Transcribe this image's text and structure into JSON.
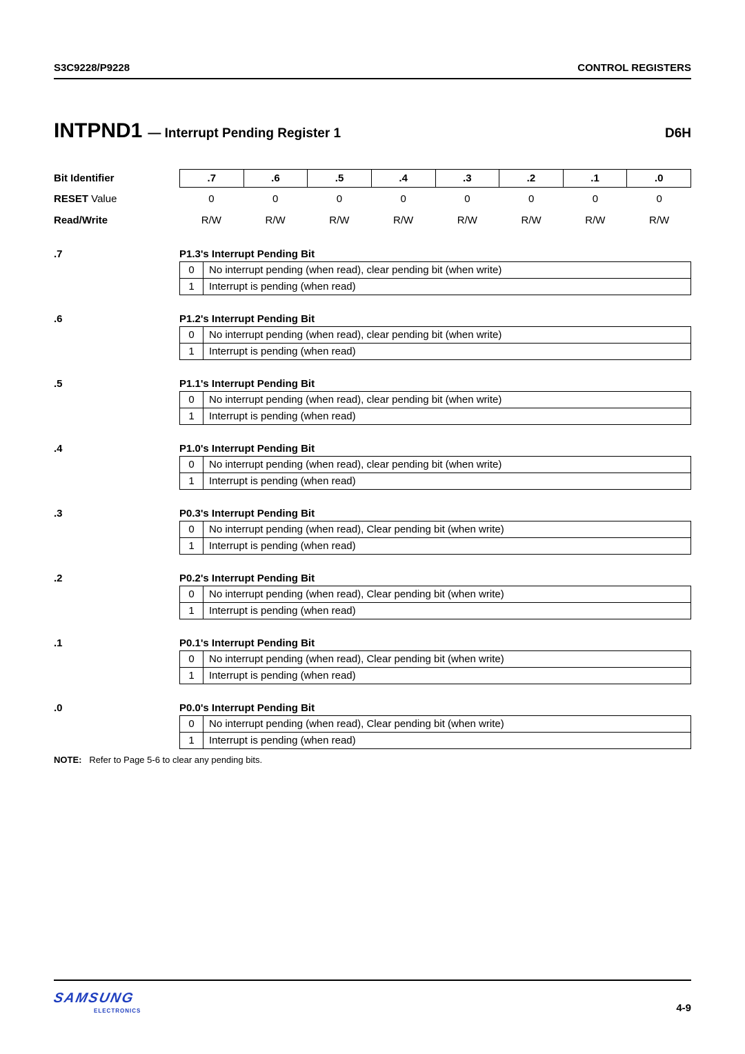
{
  "header": {
    "left": "S3C9228/P9228",
    "right": "CONTROL REGISTERS"
  },
  "title": {
    "name": "INTPND1",
    "desc": "— Interrupt Pending Register 1",
    "addr": "D6H"
  },
  "bitrow": {
    "label": "Bit Identifier",
    "cells": [
      ".7",
      ".6",
      ".5",
      ".4",
      ".3",
      ".2",
      ".1",
      ".0"
    ]
  },
  "resetrow": {
    "label_bold": "RESET",
    "label_rest": " Value",
    "cells": [
      "0",
      "0",
      "0",
      "0",
      "0",
      "0",
      "0",
      "0"
    ]
  },
  "rwrow": {
    "label": "Read/Write",
    "cells": [
      "R/W",
      "R/W",
      "R/W",
      "R/W",
      "R/W",
      "R/W",
      "R/W",
      "R/W"
    ]
  },
  "sections": [
    {
      "bit": ".7",
      "title": "P1.3's Interrupt Pending Bit",
      "rows": [
        {
          "k": "0",
          "t": "No interrupt pending (when read), clear pending bit (when write)"
        },
        {
          "k": "1",
          "t": "Interrupt is pending (when read)"
        }
      ]
    },
    {
      "bit": ".6",
      "title": "P1.2's Interrupt Pending Bit",
      "rows": [
        {
          "k": "0",
          "t": "No interrupt pending (when read), clear pending bit (when write)"
        },
        {
          "k": "1",
          "t": "Interrupt is pending (when read)"
        }
      ]
    },
    {
      "bit": ".5",
      "title": "P1.1's Interrupt Pending Bit",
      "rows": [
        {
          "k": "0",
          "t": "No interrupt pending (when read), clear pending bit (when write)"
        },
        {
          "k": "1",
          "t": "Interrupt is pending (when read)"
        }
      ]
    },
    {
      "bit": ".4",
      "title": "P1.0's Interrupt Pending Bit",
      "rows": [
        {
          "k": "0",
          "t": "No interrupt pending (when read), clear pending bit (when write)"
        },
        {
          "k": "1",
          "t": "Interrupt is pending (when read)"
        }
      ]
    },
    {
      "bit": ".3",
      "title": "P0.3's Interrupt Pending Bit",
      "rows": [
        {
          "k": "0",
          "t": "No interrupt pending (when read), Clear pending bit (when write)"
        },
        {
          "k": "1",
          "t": "Interrupt is pending (when read)"
        }
      ]
    },
    {
      "bit": ".2",
      "title": "P0.2's Interrupt Pending Bit",
      "rows": [
        {
          "k": "0",
          "t": "No interrupt pending (when read), Clear pending bit (when write)"
        },
        {
          "k": "1",
          "t": "Interrupt is pending (when read)"
        }
      ]
    },
    {
      "bit": ".1",
      "title": "P0.1's Interrupt Pending Bit",
      "rows": [
        {
          "k": "0",
          "t": "No interrupt pending (when read), Clear pending bit (when write)"
        },
        {
          "k": "1",
          "t": "Interrupt is pending (when read)"
        }
      ]
    },
    {
      "bit": ".0",
      "title": "P0.0's Interrupt Pending Bit",
      "rows": [
        {
          "k": "0",
          "t": "No interrupt pending (when read), Clear pending bit (when write)"
        },
        {
          "k": "1",
          "t": "Interrupt is pending (when read)"
        }
      ]
    }
  ],
  "note": {
    "label": "NOTE:",
    "text": "Refer to Page 5-6 to clear any pending bits."
  },
  "footer": {
    "logo_main": "SAMSUNG",
    "logo_sub": "ELECTRONICS",
    "page": "4-9"
  }
}
